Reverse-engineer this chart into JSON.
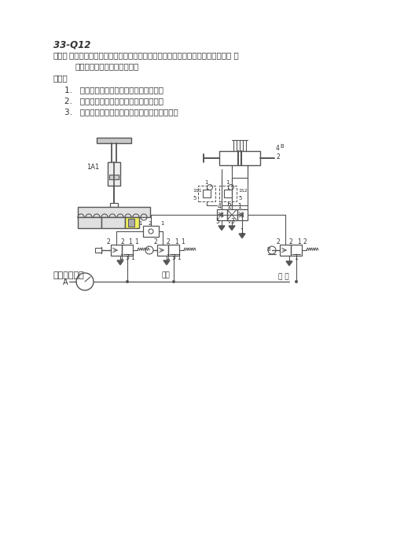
{
  "title": "33-Q12",
  "desc_label": "说明：",
  "desc_line1": "图示为货物转运站，货物到位后，操作人员按下按钮，货物转运装置的拾取 气",
  "desc_line2": "缸将货物吸收、提升后运走。",
  "req_label": "要求：",
  "req1": "1.   回答液压气动控制技术相关的知识题。",
  "req2": "2.   根据考题说明，画出气动系统回路图。",
  "req3": "3.   用实物搭接出正确的系统回路，并进行调试。",
  "circ_label": "控制回路设计",
  "bg": "#ffffff",
  "lc": "#555555",
  "tc": "#333333"
}
